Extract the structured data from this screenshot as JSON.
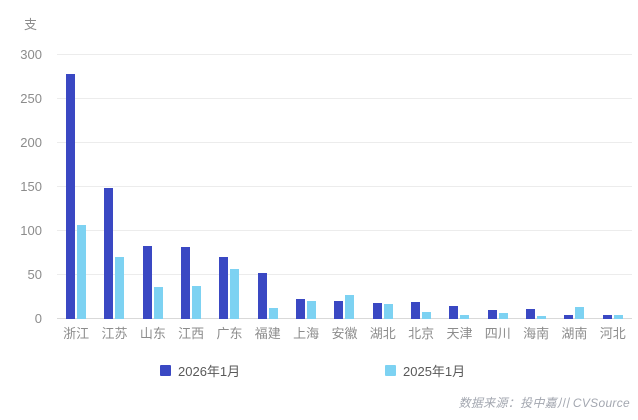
{
  "chart_data": {
    "type": "bar",
    "unit_label": "支",
    "categories": [
      "浙江",
      "江苏",
      "山东",
      "江西",
      "广东",
      "福建",
      "上海",
      "安徽",
      "湖北",
      "北京",
      "天津",
      "四川",
      "海南",
      "湖南",
      "河北"
    ],
    "series": [
      {
        "name": "2026年1月",
        "color": "#3a48c3",
        "values": [
          278,
          149,
          83,
          82,
          70,
          52,
          23,
          21,
          18,
          19,
          15,
          10,
          11,
          5,
          5
        ]
      },
      {
        "name": "2025年1月",
        "color": "#7dd2f2",
        "values": [
          107,
          70,
          36,
          38,
          57,
          13,
          21,
          27,
          17,
          8,
          5,
          7,
          3,
          14,
          4
        ]
      }
    ],
    "ylim": [
      0,
      300
    ],
    "yticks": [
      0,
      50,
      100,
      150,
      200,
      250,
      300
    ],
    "grid": true,
    "legend_position": "bottom"
  },
  "source_text": "数据来源：投中嘉川 CVSource"
}
